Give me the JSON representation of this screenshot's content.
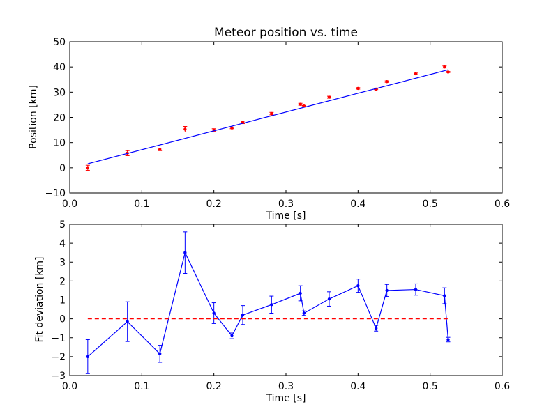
{
  "chart_data": [
    {
      "type": "scatter",
      "title": "Meteor position vs. time",
      "xlabel": "Time [s]",
      "ylabel": "Position [km]",
      "xlim": [
        0.0,
        0.6
      ],
      "ylim": [
        -10,
        50
      ],
      "xticks": [
        "0.0",
        "0.1",
        "0.2",
        "0.3",
        "0.4",
        "0.5",
        "0.6"
      ],
      "yticks": [
        "−10",
        "0",
        "10",
        "20",
        "30",
        "40",
        "50"
      ],
      "grid": false,
      "series": [
        {
          "kind": "errorbar-points",
          "color": "#ff0000",
          "points": [
            {
              "x": 0.025,
              "y": 0.0,
              "err": 1.0
            },
            {
              "x": 0.08,
              "y": 5.8,
              "err": 1.0
            },
            {
              "x": 0.125,
              "y": 7.3,
              "err": 0.5
            },
            {
              "x": 0.16,
              "y": 15.3,
              "err": 1.1
            },
            {
              "x": 0.2,
              "y": 15.0,
              "err": 0.5
            },
            {
              "x": 0.225,
              "y": 15.8,
              "err": 0.3
            },
            {
              "x": 0.24,
              "y": 18.0,
              "err": 0.5
            },
            {
              "x": 0.28,
              "y": 21.5,
              "err": 0.5
            },
            {
              "x": 0.32,
              "y": 25.2,
              "err": 0.4
            },
            {
              "x": 0.325,
              "y": 24.5,
              "err": 0.2
            },
            {
              "x": 0.36,
              "y": 28.0,
              "err": 0.4
            },
            {
              "x": 0.4,
              "y": 31.5,
              "err": 0.3
            },
            {
              "x": 0.425,
              "y": 31.2,
              "err": 0.2
            },
            {
              "x": 0.44,
              "y": 34.2,
              "err": 0.3
            },
            {
              "x": 0.48,
              "y": 37.3,
              "err": 0.3
            },
            {
              "x": 0.52,
              "y": 40.0,
              "err": 0.4
            },
            {
              "x": 0.525,
              "y": 38.0,
              "err": 0.2
            }
          ]
        },
        {
          "kind": "line",
          "color": "#0000ff",
          "x": [
            0.025,
            0.525
          ],
          "y": [
            1.6,
            38.9
          ]
        }
      ]
    },
    {
      "type": "line",
      "title": "",
      "xlabel": "Time [s]",
      "ylabel": "Fit deviation [km]",
      "xlim": [
        0.0,
        0.6
      ],
      "ylim": [
        -3,
        5
      ],
      "xticks": [
        "0.0",
        "0.1",
        "0.2",
        "0.3",
        "0.4",
        "0.5",
        "0.6"
      ],
      "yticks": [
        "−3",
        "−2",
        "−1",
        "0",
        "1",
        "2",
        "3",
        "4",
        "5"
      ],
      "grid": false,
      "series": [
        {
          "kind": "errorbar-line",
          "color": "#0000ff",
          "points": [
            {
              "x": 0.025,
              "y": -2.0,
              "err": 0.9
            },
            {
              "x": 0.08,
              "y": -0.15,
              "err": 1.05
            },
            {
              "x": 0.125,
              "y": -1.85,
              "err": 0.45
            },
            {
              "x": 0.16,
              "y": 3.5,
              "err": 1.1
            },
            {
              "x": 0.2,
              "y": 0.3,
              "err": 0.55
            },
            {
              "x": 0.225,
              "y": -0.9,
              "err": 0.15
            },
            {
              "x": 0.24,
              "y": 0.2,
              "err": 0.5
            },
            {
              "x": 0.28,
              "y": 0.75,
              "err": 0.45
            },
            {
              "x": 0.32,
              "y": 1.35,
              "err": 0.4
            },
            {
              "x": 0.325,
              "y": 0.3,
              "err": 0.12
            },
            {
              "x": 0.36,
              "y": 1.05,
              "err": 0.38
            },
            {
              "x": 0.4,
              "y": 1.75,
              "err": 0.35
            },
            {
              "x": 0.425,
              "y": -0.5,
              "err": 0.15
            },
            {
              "x": 0.44,
              "y": 1.5,
              "err": 0.32
            },
            {
              "x": 0.48,
              "y": 1.55,
              "err": 0.3
            },
            {
              "x": 0.52,
              "y": 1.22,
              "err": 0.42
            },
            {
              "x": 0.525,
              "y": -1.1,
              "err": 0.12
            }
          ]
        },
        {
          "kind": "dashed-line",
          "color": "#ff0000",
          "x": [
            0.025,
            0.525
          ],
          "y": [
            0,
            0
          ]
        }
      ]
    }
  ]
}
